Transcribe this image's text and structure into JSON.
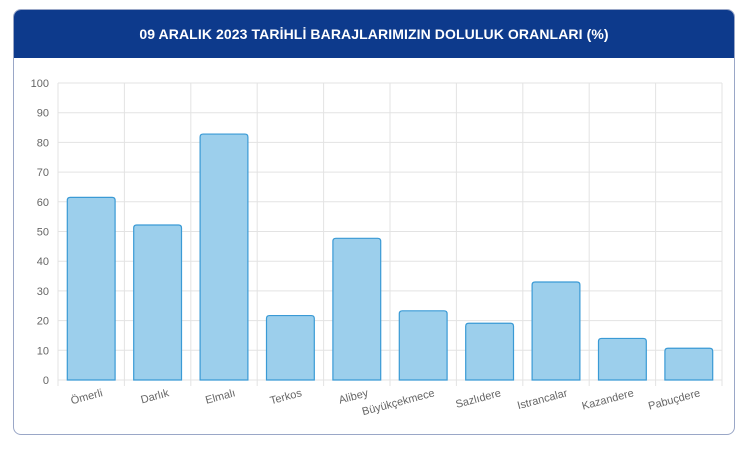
{
  "title": "09 ARALIK 2023 TARİHLİ BARAJLARIMIZIN DOLULUK ORANLARI (%)",
  "colors": {
    "header_bg": "#0d3a8c",
    "bar_fill": "#9ccfec",
    "bar_stroke": "#3a9ad5",
    "grid": "#e3e3e3",
    "tick_text": "#666666"
  },
  "chart_data": {
    "type": "bar",
    "title": "09 ARALIK 2023 TARİHLİ BARAJLARIMIZIN DOLULUK ORANLARI (%)",
    "categories": [
      "Ömerli",
      "Darlık",
      "Elmalı",
      "Terkos",
      "Alibey",
      "Büyükçekmece",
      "Sazlıdere",
      "Istrancalar",
      "Kazandere",
      "Pabuçdere"
    ],
    "values": [
      61.5,
      52.2,
      82.8,
      21.7,
      47.7,
      23.3,
      19.1,
      33.0,
      14.0,
      10.7
    ],
    "ylim": [
      0,
      100
    ],
    "yticks": [
      0,
      10,
      20,
      30,
      40,
      50,
      60,
      70,
      80,
      90,
      100
    ],
    "xlabel": "",
    "ylabel": "",
    "grid": true,
    "legend": "none"
  }
}
